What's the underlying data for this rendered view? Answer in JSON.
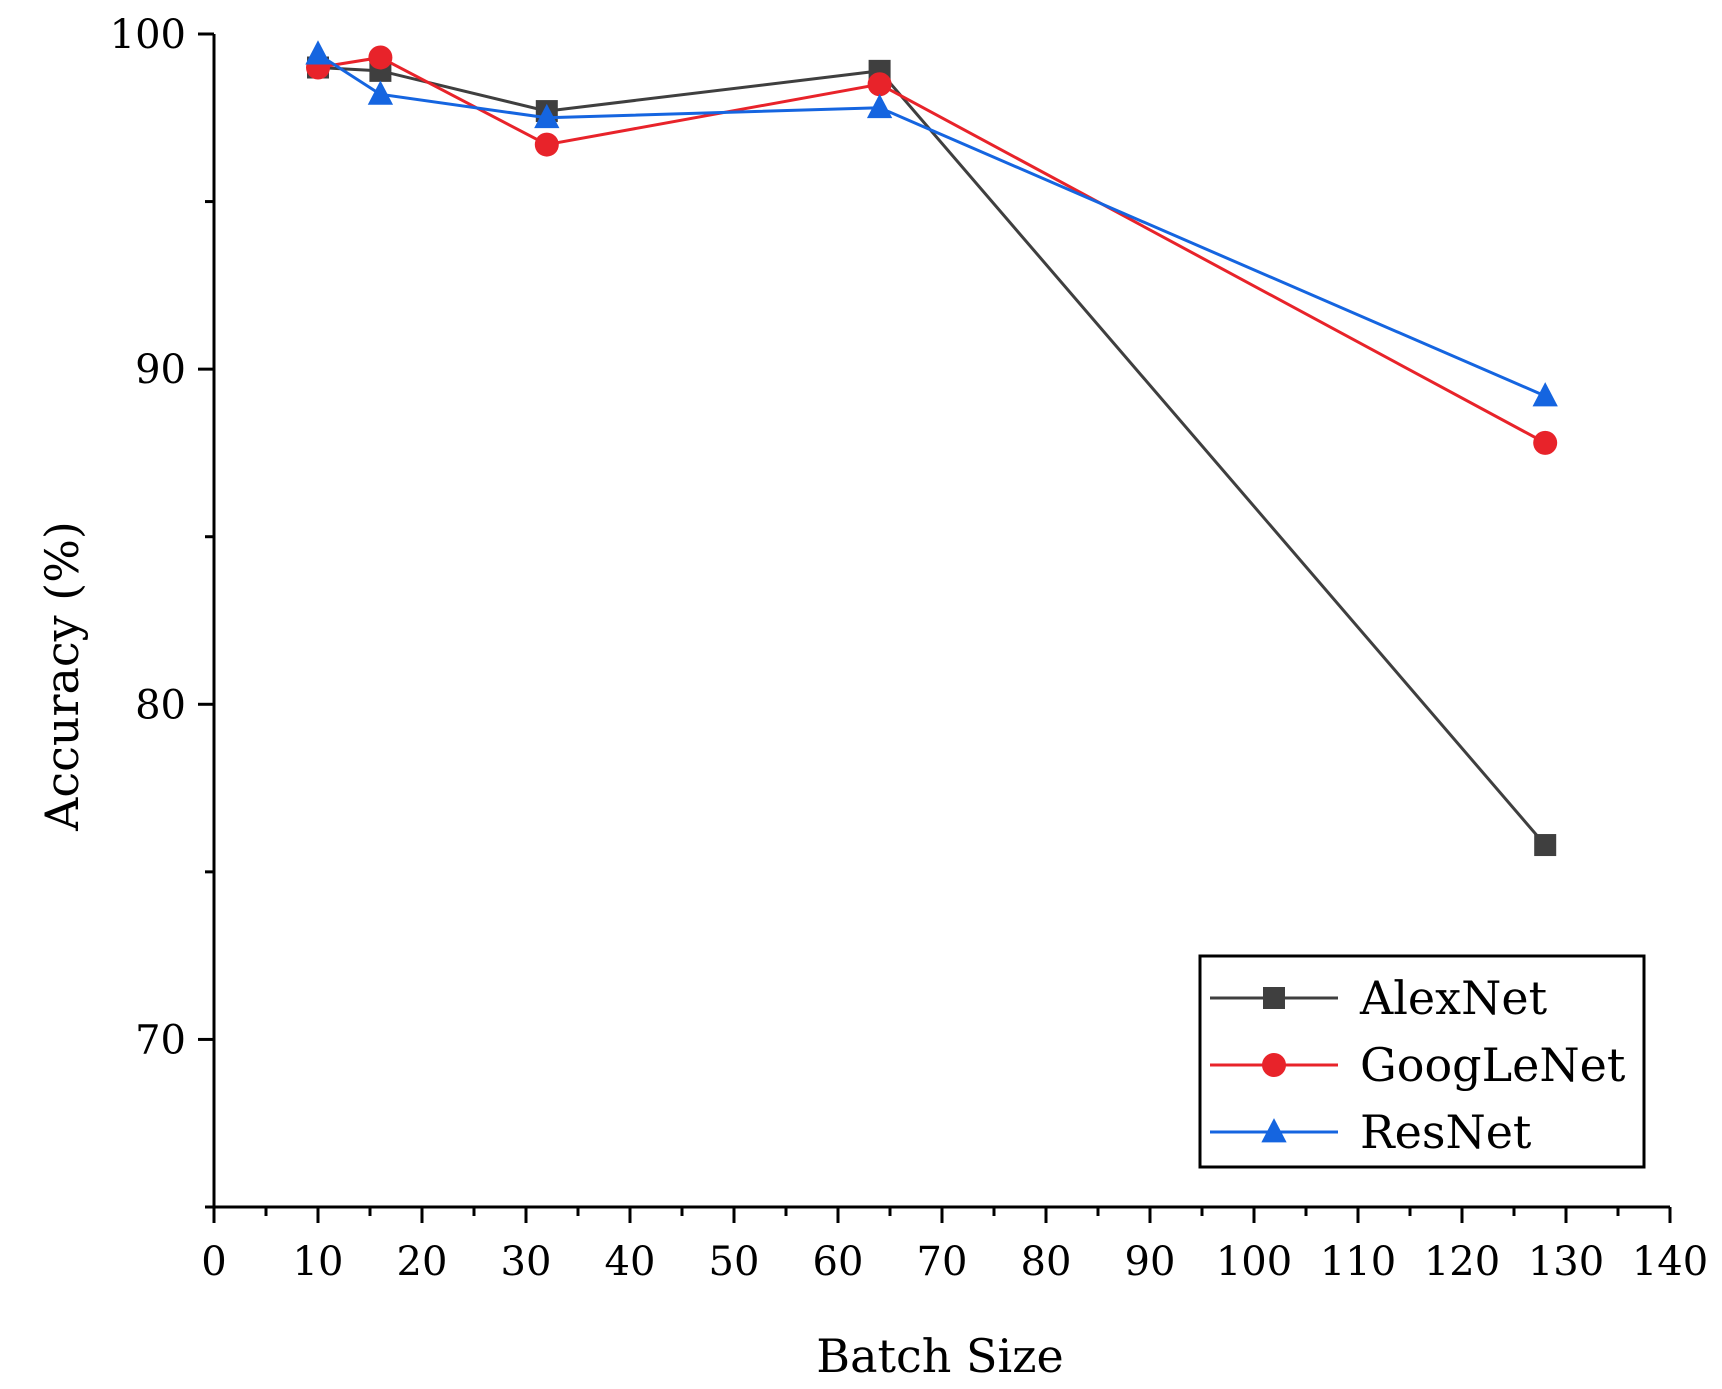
{
  "chart_data": {
    "type": "line",
    "title": "",
    "xlabel": "Batch Size",
    "ylabel": "Accuracy (%)",
    "xlim": [
      0,
      140
    ],
    "ylim": [
      65,
      100
    ],
    "xticks": [
      0,
      10,
      20,
      30,
      40,
      50,
      60,
      70,
      80,
      90,
      100,
      110,
      120,
      130,
      140
    ],
    "yticks": [
      70,
      80,
      90,
      100
    ],
    "grid": false,
    "legend_position": "bottom-right",
    "series": [
      {
        "name": "AlexNet",
        "color": "#3f3f3f",
        "marker": "square",
        "x": [
          10,
          16,
          32,
          64,
          128
        ],
        "y": [
          99.0,
          98.9,
          97.7,
          98.9,
          75.8
        ]
      },
      {
        "name": "GoogLeNet",
        "color": "#e8232a",
        "marker": "circle",
        "x": [
          10,
          16,
          32,
          64,
          128
        ],
        "y": [
          99.0,
          99.3,
          96.7,
          98.5,
          87.8
        ]
      },
      {
        "name": "ResNet",
        "color": "#1565e0",
        "marker": "triangle",
        "x": [
          10,
          16,
          32,
          64,
          128
        ],
        "y": [
          99.4,
          98.2,
          97.5,
          97.8,
          89.2
        ]
      }
    ]
  }
}
